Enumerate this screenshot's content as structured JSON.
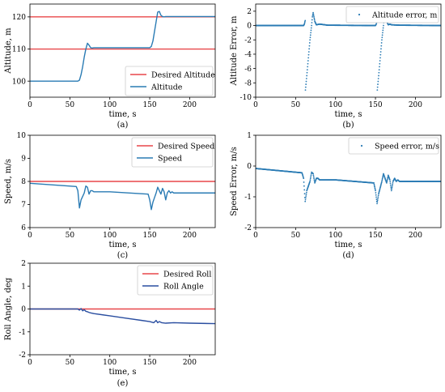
{
  "chart_data": [
    {
      "panel": "(a)",
      "type": "line",
      "xlabel": "time, s",
      "ylabel": "Altitude, m",
      "xlim": [
        0,
        232
      ],
      "ylim": [
        95,
        124
      ],
      "xticks": [
        0,
        50,
        100,
        150,
        200
      ],
      "yticks": [
        100,
        110,
        120
      ],
      "legend_position": "lower-right",
      "series": [
        {
          "name": "Desired Altitude",
          "color": "#e8474a",
          "style": "line",
          "multi": [
            {
              "x": [
                0,
                232
              ],
              "y": [
                110,
                110
              ]
            },
            {
              "x": [
                0,
                232
              ],
              "y": [
                120,
                120
              ]
            }
          ]
        },
        {
          "name": "Altitude",
          "color": "#2a7bb4",
          "style": "line",
          "x": [
            0,
            60,
            62,
            64,
            66,
            68,
            70,
            72,
            74,
            76,
            78,
            80,
            150,
            152,
            154,
            156,
            158,
            160,
            162,
            164,
            166,
            168,
            170,
            232
          ],
          "y": [
            100,
            100,
            100.3,
            102,
            104.5,
            107.5,
            110,
            111.8,
            111.2,
            110.4,
            110.3,
            110.4,
            110.4,
            110.8,
            112.5,
            115.5,
            118.5,
            121.5,
            121.7,
            120.5,
            120.1,
            120.0,
            120.1,
            120.1
          ]
        }
      ]
    },
    {
      "panel": "(b)",
      "type": "scatter",
      "xlabel": "time, s",
      "ylabel": "Altitude Error, m",
      "xlim": [
        0,
        232
      ],
      "ylim": [
        -10,
        3
      ],
      "xticks": [
        0,
        50,
        100,
        150,
        200
      ],
      "yticks": [
        -10,
        -8,
        -6,
        -4,
        -2,
        0,
        2
      ],
      "legend_position": "top-right",
      "series": [
        {
          "name": "Altitude error, m",
          "color": "#2a7bb4",
          "style": "points",
          "x": [
            0,
            60,
            61,
            62,
            62.3,
            64,
            66,
            68,
            70,
            71,
            72,
            73,
            74,
            76,
            78,
            80,
            90,
            150,
            151,
            152,
            152.3,
            154,
            156,
            158,
            160,
            161,
            162,
            163,
            164,
            166,
            168,
            170,
            180,
            232
          ],
          "y": [
            0,
            0,
            0.2,
            0.7,
            -9,
            -7,
            -4.5,
            -2,
            0,
            1.2,
            1.8,
            1.2,
            0.6,
            0.1,
            0.15,
            0.2,
            0.05,
            0,
            0.2,
            0.7,
            -9,
            -7,
            -4.5,
            -2,
            0,
            1.2,
            1.8,
            1.2,
            0.6,
            0.1,
            0.2,
            0.1,
            0.05,
            0
          ]
        }
      ]
    },
    {
      "panel": "(c)",
      "type": "line",
      "xlabel": "time, s",
      "ylabel": "Speed, m/s",
      "xlim": [
        0,
        232
      ],
      "ylim": [
        6,
        10
      ],
      "xticks": [
        0,
        50,
        100,
        150,
        200
      ],
      "yticks": [
        6,
        7,
        8,
        9,
        10
      ],
      "legend_position": "top-right",
      "series": [
        {
          "name": "Desired Speed",
          "color": "#e8474a",
          "style": "line",
          "x": [
            0,
            232
          ],
          "y": [
            8,
            8
          ]
        },
        {
          "name": "Speed",
          "color": "#2a7bb4",
          "style": "line",
          "x": [
            0,
            58,
            60,
            62,
            64,
            66,
            68,
            70,
            72,
            74,
            76,
            78,
            80,
            100,
            148,
            150,
            152,
            154,
            156,
            158,
            160,
            162,
            164,
            166,
            168,
            170,
            172,
            174,
            176,
            178,
            180,
            232
          ],
          "y": [
            7.92,
            7.78,
            7.6,
            6.85,
            7.2,
            7.35,
            7.5,
            7.8,
            7.75,
            7.45,
            7.6,
            7.6,
            7.55,
            7.55,
            7.45,
            7.2,
            6.78,
            7.1,
            7.3,
            7.5,
            7.75,
            7.6,
            7.45,
            7.7,
            7.55,
            7.2,
            7.5,
            7.6,
            7.5,
            7.55,
            7.5,
            7.5
          ]
        }
      ]
    },
    {
      "panel": "(d)",
      "type": "scatter",
      "xlabel": "time, s",
      "ylabel": "Speed Error, m/s",
      "xlim": [
        0,
        232
      ],
      "ylim": [
        -2,
        1
      ],
      "xticks": [
        0,
        50,
        100,
        150,
        200
      ],
      "yticks": [
        -2,
        -1,
        0,
        1
      ],
      "legend_position": "top-right",
      "series": [
        {
          "name": "Speed error, m/s",
          "color": "#2a7bb4",
          "style": "points",
          "x": [
            0,
            58,
            60,
            62,
            64,
            66,
            68,
            70,
            72,
            74,
            76,
            78,
            80,
            100,
            148,
            150,
            152,
            154,
            156,
            158,
            160,
            162,
            164,
            166,
            168,
            170,
            172,
            174,
            176,
            178,
            180,
            232
          ],
          "y": [
            -0.08,
            -0.22,
            -0.4,
            -1.15,
            -0.8,
            -0.65,
            -0.5,
            -0.2,
            -0.25,
            -0.55,
            -0.4,
            -0.4,
            -0.45,
            -0.45,
            -0.55,
            -0.8,
            -1.22,
            -0.9,
            -0.7,
            -0.5,
            -0.25,
            -0.4,
            -0.55,
            -0.3,
            -0.45,
            -0.8,
            -0.5,
            -0.4,
            -0.5,
            -0.45,
            -0.5,
            -0.5
          ]
        }
      ]
    },
    {
      "panel": "(e)",
      "type": "line",
      "xlabel": "time, s",
      "ylabel": "Roll Angle, deg",
      "xlim": [
        0,
        232
      ],
      "ylim": [
        -2,
        2
      ],
      "xticks": [
        0,
        50,
        100,
        150,
        200
      ],
      "yticks": [
        -2,
        -1,
        0,
        1,
        2
      ],
      "legend_position": "top-right",
      "series": [
        {
          "name": "Desired Roll",
          "color": "#e8474a",
          "style": "line",
          "x": [
            0,
            232
          ],
          "y": [
            0,
            0
          ]
        },
        {
          "name": "Roll Angle",
          "color": "#2a4ea0",
          "style": "line",
          "x": [
            0,
            58,
            60,
            62,
            64,
            66,
            68,
            70,
            72,
            74,
            76,
            80,
            100,
            120,
            140,
            150,
            155,
            158,
            160,
            162,
            165,
            170,
            180,
            200,
            232
          ],
          "y": [
            0,
            0,
            0,
            -0.05,
            0.02,
            -0.08,
            -0.03,
            -0.1,
            -0.12,
            -0.15,
            -0.17,
            -0.2,
            -0.3,
            -0.4,
            -0.5,
            -0.55,
            -0.6,
            -0.5,
            -0.6,
            -0.55,
            -0.6,
            -0.62,
            -0.6,
            -0.62,
            -0.64
          ]
        }
      ]
    }
  ]
}
